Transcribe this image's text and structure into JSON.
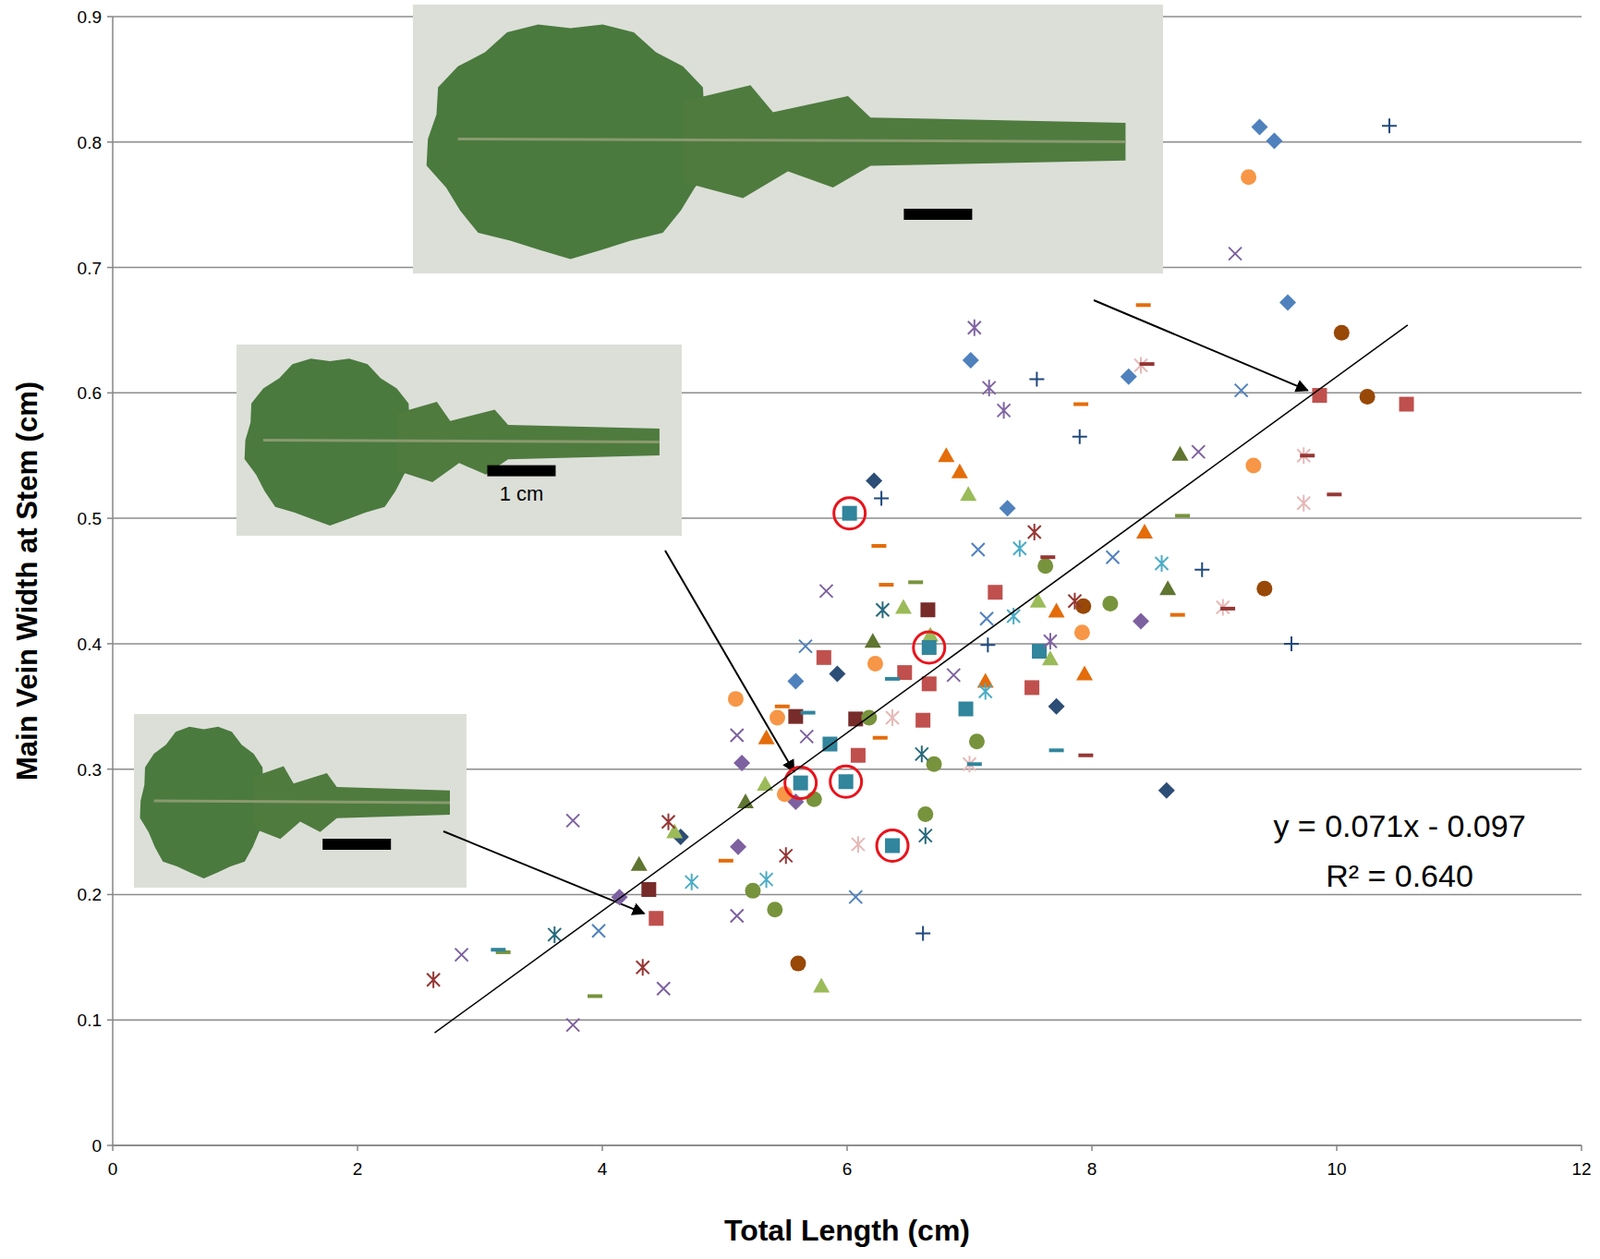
{
  "chart_data": {
    "type": "scatter",
    "x_label": "Total Length (cm)",
    "y_label": "Main Vein Width at Stem (cm)",
    "xlim": [
      0,
      12
    ],
    "ylim": [
      0,
      0.9
    ],
    "xticks": [
      0,
      2,
      4,
      6,
      8,
      10,
      12
    ],
    "yticks": [
      0,
      0.1,
      0.2,
      0.3,
      0.4,
      0.5,
      0.6,
      0.7,
      0.8,
      0.9
    ],
    "grid": true,
    "series": [
      {
        "color": "#4F81BD",
        "marker": "diamond",
        "x": [
          9.37,
          9.49,
          9.6,
          7.01,
          8.3,
          5.58,
          7.31
        ],
        "values": [
          0.812,
          0.801,
          0.672,
          0.626,
          0.613,
          0.37,
          0.508
        ]
      },
      {
        "color": "#2C4D75",
        "marker": "diamond",
        "x": [
          6.22,
          7.71,
          8.61,
          4.64,
          5.92
        ],
        "values": [
          0.53,
          0.35,
          0.283,
          0.246,
          0.376
        ]
      },
      {
        "color": "#7D60A0",
        "marker": "diamond",
        "x": [
          8.4,
          4.14,
          5.14,
          5.58,
          5.11
        ],
        "values": [
          0.418,
          0.198,
          0.305,
          0.274,
          0.238
        ]
      },
      {
        "color": "#C0504D",
        "marker": "square",
        "x": [
          9.86,
          10.57,
          7.21,
          5.81,
          6.47,
          6.67,
          6.09,
          7.51,
          4.44,
          6.62
        ],
        "values": [
          0.598,
          0.591,
          0.441,
          0.389,
          0.377,
          0.368,
          0.311,
          0.365,
          0.181,
          0.339
        ]
      },
      {
        "color": "#772C2A",
        "marker": "square",
        "x": [
          5.58,
          6.07,
          6.66,
          4.38
        ],
        "values": [
          0.342,
          0.34,
          0.427,
          0.204
        ]
      },
      {
        "color": "#31859C",
        "marker": "square",
        "x": [
          6.97,
          7.57,
          5.86
        ],
        "values": [
          0.348,
          0.394,
          0.32
        ]
      },
      {
        "color": "#31859C",
        "marker": "square-circled",
        "x": [
          6.02,
          6.67,
          5.62,
          5.99,
          6.37
        ],
        "values": [
          0.504,
          0.397,
          0.289,
          0.29,
          0.239
        ]
      },
      {
        "color": "#9BBB59",
        "marker": "triangle",
        "x": [
          6.99,
          7.66,
          7.56,
          6.68,
          6.46,
          5.79,
          4.59,
          5.33
        ],
        "values": [
          0.519,
          0.388,
          0.434,
          0.407,
          0.429,
          0.127,
          0.25,
          0.288
        ]
      },
      {
        "color": "#5F7530",
        "marker": "triangle",
        "x": [
          8.72,
          8.62,
          6.21,
          5.17,
          4.3
        ],
        "values": [
          0.551,
          0.444,
          0.402,
          0.274,
          0.224
        ]
      },
      {
        "color": "#E46C0A",
        "marker": "triangle",
        "x": [
          6.81,
          6.92,
          8.43,
          7.94,
          7.13,
          5.34,
          7.71
        ],
        "values": [
          0.55,
          0.537,
          0.489,
          0.376,
          0.37,
          0.325,
          0.426
        ]
      },
      {
        "color": "#F79646",
        "marker": "circle",
        "x": [
          9.28,
          9.32,
          7.92,
          5.43,
          5.09,
          6.23,
          5.49
        ],
        "values": [
          0.772,
          0.542,
          0.409,
          0.341,
          0.356,
          0.384,
          0.28
        ]
      },
      {
        "color": "#984807",
        "marker": "circle",
        "x": [
          10.04,
          10.25,
          9.41,
          7.93,
          5.6
        ],
        "values": [
          0.648,
          0.597,
          0.444,
          0.43,
          0.145
        ]
      },
      {
        "color": "#77933C",
        "marker": "circle",
        "x": [
          7.62,
          8.15,
          7.06,
          6.71,
          6.64,
          6.18,
          5.23,
          5.41,
          5.73
        ],
        "values": [
          0.462,
          0.432,
          0.322,
          0.304,
          0.264,
          0.341,
          0.203,
          0.188,
          0.276
        ]
      },
      {
        "color": "#7D60A0",
        "marker": "x",
        "x": [
          9.17,
          5.83,
          3.76,
          3.76,
          2.85,
          4.5,
          5.1,
          5.67,
          5.1,
          8.87,
          6.87
        ],
        "values": [
          0.711,
          0.442,
          0.096,
          0.259,
          0.152,
          0.125,
          0.327,
          0.326,
          0.183,
          0.553,
          0.375
        ]
      },
      {
        "color": "#4F81BD",
        "marker": "x",
        "x": [
          7.07,
          8.17,
          9.22,
          3.97,
          6.07,
          5.66,
          7.14
        ],
        "values": [
          0.475,
          0.469,
          0.602,
          0.171,
          0.198,
          0.398,
          0.42
        ]
      },
      {
        "color": "#4BACC6",
        "marker": "asterisk",
        "x": [
          7.41,
          8.57,
          7.13,
          7.36,
          4.73,
          5.34
        ],
        "values": [
          0.476,
          0.464,
          0.362,
          0.422,
          0.21,
          0.212
        ]
      },
      {
        "color": "#276A7C",
        "marker": "asterisk",
        "x": [
          3.61,
          6.29,
          6.61,
          6.64
        ],
        "values": [
          0.168,
          0.427,
          0.312,
          0.247
        ]
      },
      {
        "color": "#943634",
        "marker": "asterisk",
        "x": [
          2.62,
          4.33,
          4.54,
          5.5,
          7.53,
          7.86
        ],
        "values": [
          0.132,
          0.142,
          0.258,
          0.231,
          0.489,
          0.434
        ]
      },
      {
        "color": "#1F497D",
        "marker": "plus",
        "x": [
          10.43,
          9.63,
          6.62,
          7.55,
          7.9,
          6.28,
          8.9,
          7.15
        ],
        "values": [
          0.813,
          0.4,
          0.169,
          0.611,
          0.565,
          0.516,
          0.459,
          0.399
        ]
      },
      {
        "color": "#8064A2",
        "marker": "asterisk",
        "x": [
          7.04,
          7.16,
          7.28,
          7.66
        ],
        "values": [
          0.652,
          0.604,
          0.586,
          0.402
        ]
      },
      {
        "color": "#E6B9B8",
        "marker": "asterisk",
        "x": [
          9.73,
          9.73,
          9.07,
          6.09,
          6.37,
          8.4,
          7.0
        ],
        "values": [
          0.55,
          0.512,
          0.429,
          0.24,
          0.341,
          0.622,
          0.304
        ]
      },
      {
        "color": "#E46C0A",
        "marker": "dash",
        "x": [
          8.42,
          7.91,
          6.26,
          6.32,
          8.7,
          6.27,
          5.01,
          5.47
        ],
        "values": [
          0.67,
          0.591,
          0.478,
          0.447,
          0.423,
          0.325,
          0.227,
          0.35
        ]
      },
      {
        "color": "#77933C",
        "marker": "dash",
        "x": [
          6.56,
          8.74,
          3.94,
          3.19
        ],
        "values": [
          0.449,
          0.502,
          0.119,
          0.154
        ]
      },
      {
        "color": "#953735",
        "marker": "dash",
        "x": [
          9.98,
          9.11,
          8.45,
          9.76,
          7.64,
          7.95
        ],
        "values": [
          0.519,
          0.428,
          0.623,
          0.55,
          0.469,
          0.311
        ]
      },
      {
        "color": "#31859C",
        "marker": "dash",
        "x": [
          3.15,
          7.04,
          5.68,
          6.37,
          7.71
        ],
        "values": [
          0.156,
          0.304,
          0.345,
          0.372,
          0.315
        ]
      }
    ],
    "trendline": {
      "slope": 0.071,
      "intercept": -0.097,
      "x": [
        2.63,
        10.58
      ],
      "equation": "y = 0.071x - 0.097",
      "r_squared_label": "R² = 0.640"
    },
    "annotations": [
      {
        "x": 9.86,
        "y": 0.598
      },
      {
        "x": 5.62,
        "y": 0.289,
        "text": "1 cm"
      },
      {
        "x": 4.44,
        "y": 0.181
      }
    ]
  }
}
